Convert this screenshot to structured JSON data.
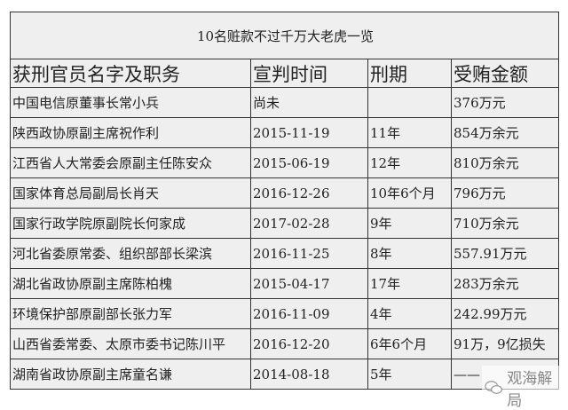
{
  "title": "10名赃款不过千万大老虎一览",
  "headers": [
    "获刑官员名字及职务",
    "宣判时间",
    "刑期",
    "受贿金额"
  ],
  "rows": [
    [
      "中国电信原董事长常小兵",
      "尚未",
      "",
      "376万元"
    ],
    [
      "陕西政协原副主席祝作利",
      "2015-11-19",
      "11年",
      "854万余元"
    ],
    [
      "江西省人大常委会原副主任陈安众",
      "2015-06-19",
      "12年",
      "810万余元"
    ],
    [
      "国家体育总局副局长肖天",
      "2016-12-26",
      "10年6个月",
      "796万元"
    ],
    [
      "国家行政学院原副院长何家成",
      "2017-02-28",
      "9年",
      "710万余元"
    ],
    [
      "河北省委原常委、组织部部长梁滨",
      "2016-11-25",
      "8年",
      "557.91万元"
    ],
    [
      "湖北省政协原副主席陈柏槐",
      "2015-04-17",
      "17年",
      "283万余元"
    ],
    [
      "环境保护部原副部长张力军",
      "2016-11-09",
      "4年",
      "242.99万元"
    ],
    [
      "山西省委常委、太原市委书记陈川平",
      "2016-12-20",
      "6年6个月",
      "91万，9亿损失"
    ],
    [
      "湖南省政协原副主席童名谦",
      "2014-08-18",
      "5年",
      "——"
    ]
  ],
  "watermark": {
    "text": "观海解局",
    "icon": "wechat-icon"
  }
}
